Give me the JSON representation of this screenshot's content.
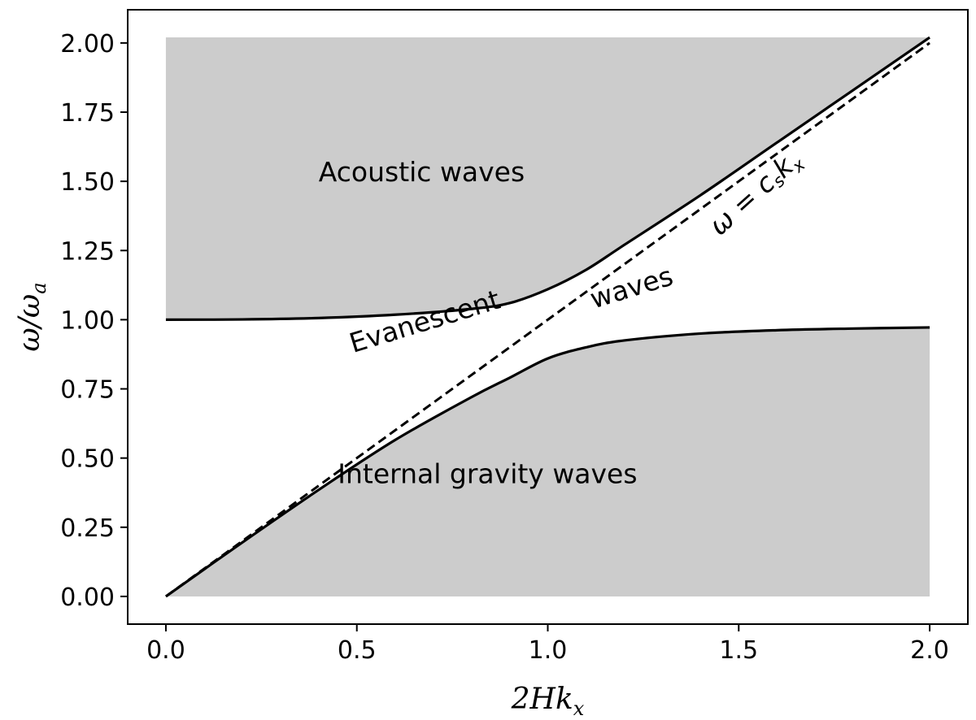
{
  "chart_data": {
    "type": "line",
    "xlabel": "2Hk_x",
    "ylabel": "ω/ω_a",
    "xlim": [
      -0.1,
      2.1
    ],
    "ylim": [
      -0.1,
      2.12
    ],
    "x_ticks": [
      0.0,
      0.5,
      1.0,
      1.5,
      2.0
    ],
    "x_tick_labels": [
      "0.0",
      "0.5",
      "1.0",
      "1.5",
      "2.0"
    ],
    "y_ticks": [
      0.0,
      0.25,
      0.5,
      0.75,
      1.0,
      1.25,
      1.5,
      1.75,
      2.0
    ],
    "y_tick_labels": [
      "0.00",
      "0.25",
      "0.50",
      "0.75",
      "1.00",
      "1.25",
      "1.50",
      "1.75",
      "2.00"
    ],
    "grid": false,
    "colors": {
      "curve": "#000000",
      "fill": "#cccccc",
      "frame": "#000000"
    },
    "series": [
      {
        "role": "upper-branch",
        "style": "solid",
        "x": [
          0.0,
          0.2,
          0.4,
          0.6,
          0.8,
          0.9,
          1.0,
          1.1,
          1.2,
          1.4,
          1.6,
          1.8,
          2.0
        ],
        "y": [
          1.0,
          1.001,
          1.006,
          1.018,
          1.039,
          1.06,
          1.11,
          1.18,
          1.27,
          1.45,
          1.64,
          1.83,
          2.02
        ]
      },
      {
        "role": "lower-branch",
        "style": "solid",
        "x": [
          0.0,
          0.2,
          0.4,
          0.6,
          0.8,
          0.9,
          1.0,
          1.1,
          1.2,
          1.4,
          1.6,
          1.8,
          2.0
        ],
        "y": [
          0.0,
          0.195,
          0.385,
          0.565,
          0.72,
          0.79,
          0.86,
          0.9,
          0.925,
          0.95,
          0.962,
          0.968,
          0.972
        ]
      },
      {
        "role": "sound-speed-line",
        "style": "dashed",
        "x": [
          0.0,
          2.0
        ],
        "y": [
          0.0,
          2.0
        ]
      }
    ],
    "annotations": [
      {
        "text": "Acoustic waves",
        "x": 0.4,
        "y": 1.5
      },
      {
        "text": "Internal gravity waves",
        "x": 0.45,
        "y": 0.41
      },
      {
        "text": "Evanescent",
        "x": 0.49,
        "y": 0.88
      },
      {
        "text": "waves",
        "x": 1.12,
        "y": 1.04
      },
      {
        "text": "ω = c",
        "sub": "s",
        "text2": "k",
        "sub2": "x",
        "x": 1.45,
        "y": 1.3
      }
    ]
  }
}
